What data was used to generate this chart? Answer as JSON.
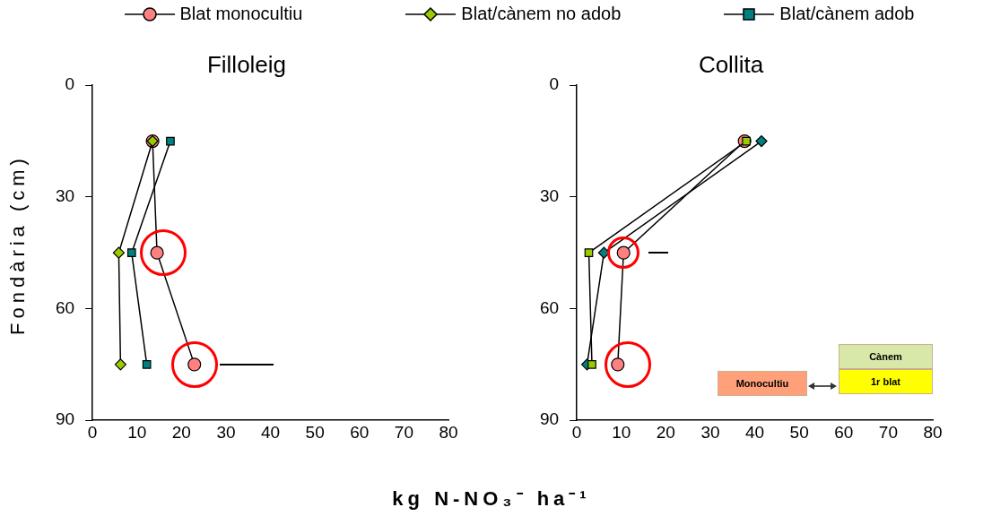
{
  "chart_data": [
    {
      "type": "line",
      "title": "Filloleig",
      "xlabel": "kg N-NO₃⁻ ha⁻¹",
      "ylabel": "Fondària (cm)",
      "legend": "top",
      "grid": false,
      "xlim": [
        0,
        80
      ],
      "xticks": [
        0,
        10,
        20,
        30,
        40,
        50,
        60,
        70,
        80
      ],
      "ylim": [
        90,
        0
      ],
      "yticks": [
        0,
        30,
        60,
        90
      ],
      "series": [
        {
          "name": "Blat monocultiu",
          "color": "#ff8080",
          "marker": "circle",
          "x": [
            13.5,
            14.5,
            22.9
          ],
          "values": [
            15,
            45,
            75
          ]
        },
        {
          "name": "Blat/cànem no adob",
          "color": "#99cc00",
          "marker": "diamond",
          "x": [
            13.5,
            5.9,
            6.3
          ],
          "values": [
            15,
            45,
            75
          ]
        },
        {
          "name": "Blat/cànem adob",
          "color": "#008080",
          "marker": "square",
          "x": [
            17.5,
            8.8,
            12.2
          ],
          "values": [
            15,
            45,
            75
          ]
        }
      ]
    },
    {
      "type": "line",
      "title": "Collita",
      "grid": false,
      "xlim": [
        0,
        80
      ],
      "xticks": [
        0,
        10,
        20,
        30,
        40,
        50,
        60,
        70,
        80
      ],
      "ylim": [
        90,
        0
      ],
      "yticks": [
        0,
        30,
        60,
        90
      ],
      "annotations": [
        "Cànem",
        "1r blat",
        "Monocultiu"
      ],
      "series": [
        {
          "color": "#ff8080",
          "marker": "circle",
          "x": [
            37.7,
            10.5,
            9.2
          ],
          "values": [
            15,
            45,
            75
          ]
        },
        {
          "color": "#008080",
          "marker": "diamond",
          "x": [
            41.5,
            6.1,
            2.3
          ],
          "values": [
            15,
            45,
            75
          ]
        },
        {
          "color": "#99cc00",
          "marker": "square",
          "x": [
            38.1,
            2.7,
            3.4
          ],
          "values": [
            15,
            45,
            75
          ]
        }
      ]
    }
  ]
}
